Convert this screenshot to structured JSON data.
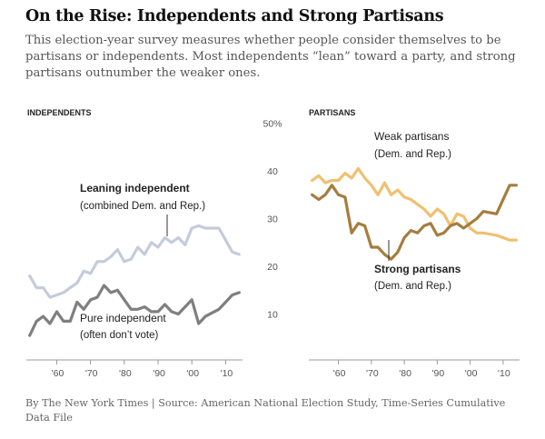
{
  "title": "On the Rise: Independents and Strong Partisans",
  "subtitle": "This election-year survey measures whether people consider themselves to be partisans or independents. Most independents “lean” toward a party, and strong partisans outnumber the weaker ones.",
  "source": "By The New York Times | Source: American National Election Study, Time-Series Cumulative Data File",
  "chart_data": [
    {
      "type": "line",
      "panel_title": "INDEPENDENTS",
      "x_tick_labels": [
        "'60",
        "'70",
        "'80",
        "'90",
        "'00",
        "'10"
      ],
      "x_ticks": [
        1960,
        1970,
        1980,
        1990,
        2000,
        2010
      ],
      "y_tick_labels": [
        "50%",
        "40",
        "30",
        "20",
        "10"
      ],
      "y_ticks": [
        50,
        40,
        30,
        20,
        10
      ],
      "xlim": [
        1951,
        2015
      ],
      "ylim": [
        0,
        52
      ],
      "grid": false,
      "series": [
        {
          "name": "Leaning independent",
          "label_lines": [
            "Leaning independent",
            "(combined Dem. and Rep.)"
          ],
          "color": "#c4cbdc",
          "x": [
            1952,
            1954,
            1956,
            1958,
            1960,
            1962,
            1964,
            1966,
            1968,
            1970,
            1972,
            1974,
            1976,
            1978,
            1980,
            1982,
            1984,
            1986,
            1988,
            1990,
            1992,
            1994,
            1996,
            1998,
            2000,
            2002,
            2004,
            2008,
            2012,
            2014
          ],
          "y": [
            18,
            15.5,
            15.5,
            13.5,
            14,
            14.5,
            15.5,
            16.5,
            19,
            18.5,
            21,
            21,
            22,
            23.5,
            21,
            21.5,
            24,
            22.5,
            25,
            24,
            26,
            25,
            26,
            24.5,
            28,
            28.5,
            28,
            28,
            23,
            22.5
          ]
        },
        {
          "name": "Pure independent",
          "label_lines": [
            "Pure independent",
            "(often don’t vote)"
          ],
          "color": "#7f7f7f",
          "x": [
            1952,
            1954,
            1956,
            1958,
            1960,
            1962,
            1964,
            1966,
            1968,
            1970,
            1972,
            1974,
            1976,
            1978,
            1980,
            1982,
            1984,
            1986,
            1988,
            1990,
            1992,
            1994,
            1996,
            1998,
            2000,
            2002,
            2004,
            2008,
            2012,
            2014
          ],
          "y": [
            5.5,
            8.5,
            9.5,
            8,
            10.5,
            8.5,
            8.5,
            12.5,
            11,
            13,
            13.5,
            16,
            14.5,
            15,
            13,
            11,
            11,
            11.5,
            10.5,
            10.5,
            12,
            10.5,
            10,
            11.5,
            13,
            8,
            9.5,
            11,
            14,
            14.5
          ]
        }
      ]
    },
    {
      "type": "line",
      "panel_title": "PARTISANS",
      "x_tick_labels": [
        "'60",
        "'70",
        "'80",
        "'90",
        "'00",
        "'10"
      ],
      "x_ticks": [
        1960,
        1970,
        1980,
        1990,
        2000,
        2010
      ],
      "xlim": [
        1951,
        2015
      ],
      "ylim": [
        0,
        52
      ],
      "grid": false,
      "series": [
        {
          "name": "Weak partisans",
          "label_lines": [
            "Weak partisans",
            "(Dem. and Rep.)"
          ],
          "color": "#f0c071",
          "x": [
            1952,
            1954,
            1956,
            1958,
            1960,
            1962,
            1964,
            1966,
            1968,
            1970,
            1972,
            1974,
            1976,
            1978,
            1980,
            1982,
            1984,
            1986,
            1988,
            1990,
            1992,
            1994,
            1996,
            1998,
            2000,
            2002,
            2004,
            2008,
            2012,
            2014
          ],
          "y": [
            38,
            39,
            37.5,
            38,
            38,
            39.5,
            38.5,
            40.5,
            38.5,
            37,
            35,
            37.5,
            35,
            36,
            34.5,
            34,
            33,
            32,
            30.5,
            32,
            31,
            28.5,
            31,
            30.5,
            28,
            27,
            27,
            26.5,
            25.5,
            25.5
          ]
        },
        {
          "name": "Strong partisans",
          "label_lines": [
            "Strong partisans",
            "(Dem. and Rep.)"
          ],
          "color": "#a57d3f",
          "x": [
            1952,
            1954,
            1956,
            1958,
            1960,
            1962,
            1964,
            1966,
            1968,
            1970,
            1972,
            1974,
            1976,
            1978,
            1980,
            1982,
            1984,
            1986,
            1988,
            1990,
            1992,
            1994,
            1996,
            1998,
            2000,
            2002,
            2004,
            2008,
            2012,
            2014
          ],
          "y": [
            35,
            34,
            35,
            37,
            35,
            34.5,
            27,
            29,
            28.5,
            24,
            24,
            22.5,
            21.5,
            23,
            26,
            27.5,
            27,
            28.5,
            29,
            26.5,
            27,
            28.5,
            29,
            28,
            29,
            30,
            31.5,
            31,
            37,
            37
          ]
        }
      ]
    }
  ]
}
